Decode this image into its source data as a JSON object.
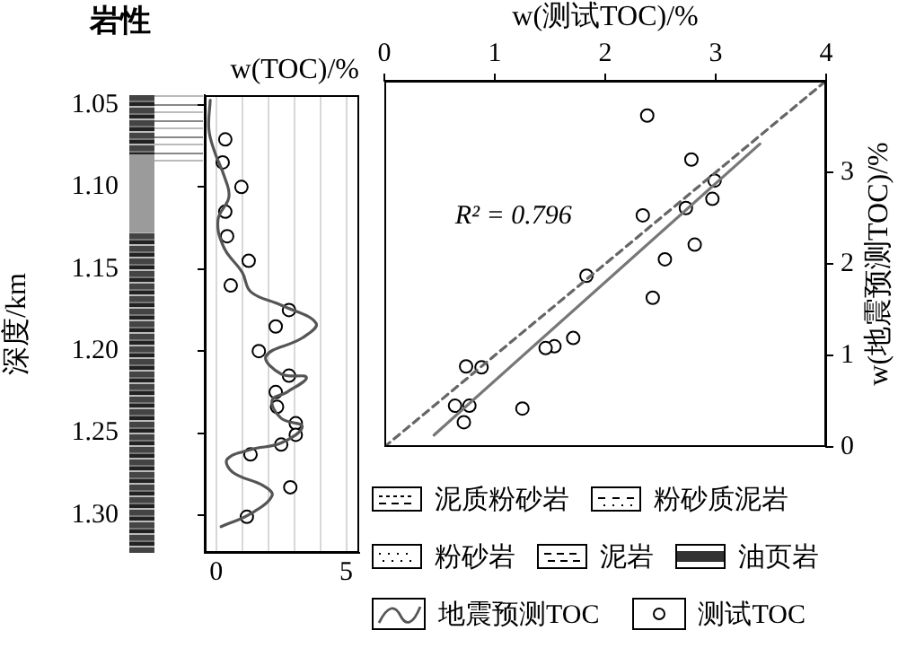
{
  "chart_data": [
    {
      "type": "other",
      "title": "岩性",
      "categories": [
        "泥质粉砂岩",
        "粉砂质泥岩",
        "粉砂岩",
        "泥岩",
        "油页岩"
      ]
    },
    {
      "type": "line",
      "title": "w(TOC)/%",
      "ylabel": "深度/km",
      "xlim": [
        -0.44,
        5.5
      ],
      "xticks": [
        0,
        {
          "value": 1,
          "label": null
        },
        {
          "value": 2,
          "label": null
        },
        {
          "value": 3,
          "label": null
        },
        {
          "value": 4,
          "label": null
        },
        5
      ],
      "ylim": [
        1.323,
        1.044
      ],
      "yticks": [
        1.05,
        {
          "value": 1.1,
          "label": "1.10"
        },
        1.15,
        {
          "value": 1.2,
          "label": "1.20"
        },
        1.25,
        {
          "value": 1.3,
          "label": "1.30"
        }
      ],
      "grid": "x",
      "legend": "bottom right",
      "series": [
        {
          "name": "地震预测TOC",
          "type": "line",
          "color": "#555555",
          "x": [
            -0.23,
            -0.28,
            -0.05,
            0.3,
            0.49,
            0.07,
            0.3,
            1.0,
            1.34,
            2.5,
            3.84,
            3.31,
            1.92,
            2.5,
            3.47,
            2.73,
            2.15,
            2.5,
            3.31,
            2.5,
            1.34,
            0.42,
            0.65,
            1.81,
            2.15,
            1.34,
            0.19
          ],
          "values": [
            1.047,
            1.065,
            1.079,
            1.093,
            1.106,
            1.12,
            1.137,
            1.152,
            1.164,
            1.172,
            1.183,
            1.192,
            1.203,
            1.214,
            1.216,
            1.225,
            1.23,
            1.241,
            1.246,
            1.256,
            1.26,
            1.266,
            1.274,
            1.282,
            1.288,
            1.299,
            1.307
          ]
        },
        {
          "name": "测试TOC",
          "type": "scatter",
          "marker": "circle",
          "color": "#000000",
          "x": [
            0.35,
            0.25,
            0.97,
            0.35,
            0.42,
            1.25,
            0.56,
            2.8,
            2.29,
            1.64,
            2.8,
            2.29,
            2.34,
            3.06,
            3.06,
            2.5,
            1.32,
            2.85,
            1.18
          ],
          "values": [
            1.071,
            1.085,
            1.1,
            1.115,
            1.13,
            1.145,
            1.16,
            1.175,
            1.185,
            1.2,
            1.215,
            1.225,
            1.234,
            1.244,
            1.251,
            1.257,
            1.263,
            1.283,
            1.301
          ]
        }
      ]
    },
    {
      "type": "scatter",
      "xlabel": "w(测试TOC)/%",
      "ylabel": "w(地震预测TOC)/%",
      "xlim": [
        0,
        4
      ],
      "xticks": [
        0,
        1,
        2,
        3,
        4
      ],
      "ylim": [
        0,
        4
      ],
      "yticks": [
        0,
        1,
        2,
        3
      ],
      "annotations": [
        "R² = 0.796"
      ],
      "series": [
        {
          "type": "line",
          "line_style": "dashed",
          "color": "#666666",
          "x": [
            0,
            4
          ],
          "values": [
            0,
            4
          ]
        },
        {
          "type": "line",
          "color": "#777777",
          "x": [
            0.45,
            3.4
          ],
          "values": [
            0.13,
            3.31
          ]
        },
        {
          "type": "scatter",
          "marker": "circle",
          "color": "#000000",
          "x": [
            2.38,
            2.78,
            2.99,
            2.97,
            2.73,
            2.34,
            2.81,
            2.54,
            1.83,
            2.43,
            1.71,
            1.54,
            1.46,
            0.74,
            0.88,
            0.64,
            0.77,
            0.72,
            1.25
          ],
          "values": [
            3.62,
            3.14,
            2.91,
            2.71,
            2.61,
            2.53,
            2.21,
            2.05,
            1.87,
            1.63,
            1.19,
            1.1,
            1.08,
            0.88,
            0.87,
            0.45,
            0.45,
            0.27,
            0.42
          ]
        }
      ]
    }
  ]
}
